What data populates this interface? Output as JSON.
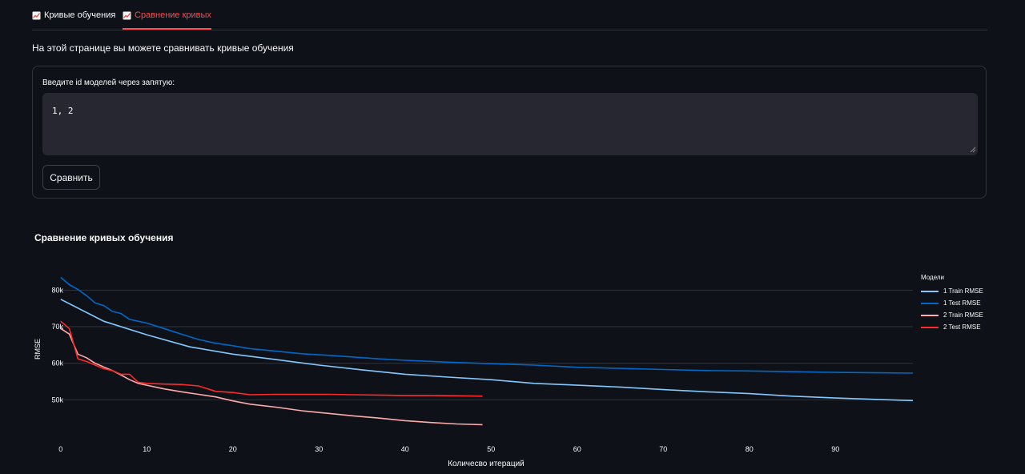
{
  "tabs": [
    {
      "label": "Кривые обучения",
      "icon": "chart-increasing-icon",
      "active": false
    },
    {
      "label": "Сравнение кривых",
      "icon": "chart-increasing-icon",
      "active": true
    }
  ],
  "description": "На этой странице вы можете сравнивать кривые обучения",
  "form": {
    "label": "Введите id моделей через запятую:",
    "value": "1, 2",
    "button_label": "Сравнить"
  },
  "colors": {
    "accent": "#ff4b4b",
    "background": "#0e1117",
    "input_bg": "#262730"
  },
  "chart_data": {
    "type": "line",
    "title": "Сравнение кривых обучения",
    "xlabel": "Количесво итераций",
    "ylabel": "RMSE",
    "xlim": [
      -1,
      99
    ],
    "ylim": [
      40000,
      86000
    ],
    "x_ticks": [
      0,
      10,
      20,
      30,
      40,
      50,
      60,
      70,
      80,
      90
    ],
    "y_ticks": [
      50000,
      60000,
      70000,
      80000
    ],
    "y_tick_labels": [
      "50k",
      "60k",
      "70k",
      "80k"
    ],
    "grid": "horizontal",
    "legend_title": "Модели",
    "legend_position": "right",
    "series": [
      {
        "name": "1 Train RMSE",
        "color": "#83c9ff",
        "x": [
          0,
          5,
          10,
          15,
          20,
          25,
          30,
          35,
          40,
          45,
          50,
          55,
          60,
          65,
          70,
          75,
          80,
          85,
          90,
          95,
          99
        ],
        "values": [
          77500,
          71500,
          67800,
          64500,
          62500,
          61000,
          59500,
          58200,
          57000,
          56200,
          55500,
          54500,
          54000,
          53500,
          52800,
          52200,
          51700,
          51000,
          50500,
          50100,
          49800
        ]
      },
      {
        "name": "1 Test RMSE",
        "color": "#0068c9",
        "x": [
          0,
          1,
          2,
          3,
          4,
          5,
          6,
          7,
          8,
          9,
          10,
          12,
          14,
          16,
          18,
          20,
          22,
          25,
          28,
          31,
          34,
          37,
          40,
          45,
          50,
          55,
          60,
          65,
          70,
          75,
          80,
          85,
          90,
          95,
          99
        ],
        "values": [
          83500,
          81500,
          80200,
          78500,
          76500,
          75800,
          74200,
          73600,
          72000,
          71500,
          71000,
          69500,
          68000,
          66500,
          65500,
          64800,
          64000,
          63300,
          62600,
          62200,
          61700,
          61200,
          60800,
          60300,
          59900,
          59500,
          58900,
          58600,
          58300,
          58000,
          57900,
          57700,
          57500,
          57400,
          57300
        ]
      },
      {
        "name": "2 Train RMSE",
        "color": "#ffabab",
        "x": [
          0,
          1,
          2,
          3,
          4,
          5,
          6,
          7,
          8,
          9,
          10,
          12,
          14,
          16,
          18,
          20,
          22,
          25,
          28,
          31,
          34,
          37,
          40,
          43,
          46,
          49
        ],
        "values": [
          69500,
          68000,
          62500,
          61500,
          60000,
          59000,
          58000,
          56800,
          55500,
          54500,
          54000,
          53000,
          52200,
          51500,
          50800,
          49700,
          48800,
          48000,
          47000,
          46300,
          45600,
          45000,
          44300,
          43800,
          43400,
          43200
        ]
      },
      {
        "name": "2 Test RMSE",
        "color": "#ff2b2b",
        "x": [
          0,
          1,
          2,
          3,
          4,
          5,
          6,
          7,
          8,
          9,
          10,
          12,
          14,
          16,
          18,
          20,
          22,
          25,
          28,
          31,
          34,
          37,
          40,
          43,
          46,
          49
        ],
        "values": [
          71500,
          69500,
          61200,
          60500,
          59500,
          58500,
          58000,
          57000,
          57000,
          54800,
          54500,
          54300,
          54200,
          53800,
          52300,
          52000,
          51400,
          51500,
          51500,
          51500,
          51400,
          51300,
          51200,
          51200,
          51100,
          51000
        ]
      }
    ]
  }
}
